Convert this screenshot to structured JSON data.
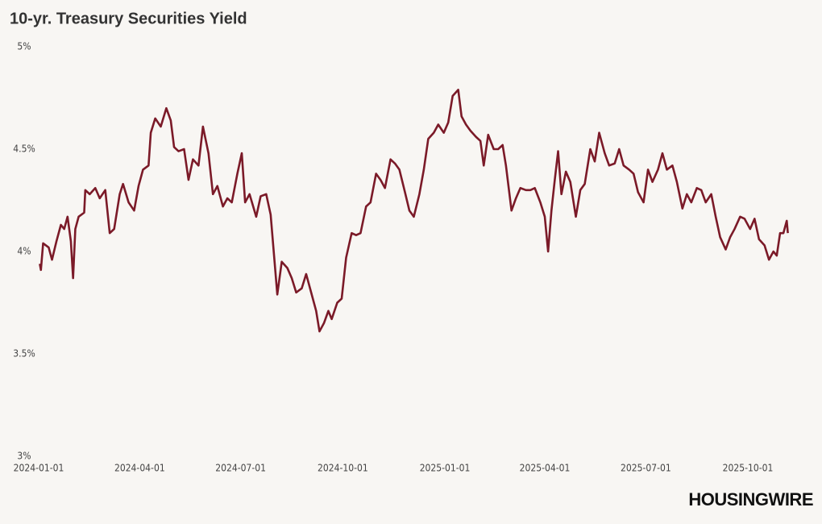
{
  "chart_data": {
    "type": "line",
    "title": "10-yr. Treasury Securities Yield",
    "logo": "HOUSINGWIRE",
    "x": [
      "2024-01-02",
      "2024-01-03",
      "2024-01-05",
      "2024-01-10",
      "2024-01-13",
      "2024-01-17",
      "2024-01-21",
      "2024-01-24",
      "2024-01-27",
      "2024-01-30",
      "2024-02-01",
      "2024-02-03",
      "2024-02-06",
      "2024-02-11",
      "2024-02-12",
      "2024-02-16",
      "2024-02-21",
      "2024-02-25",
      "2024-03-01",
      "2024-03-05",
      "2024-03-09",
      "2024-03-14",
      "2024-03-17",
      "2024-03-22",
      "2024-03-27",
      "2024-03-31",
      "2024-04-04",
      "2024-04-09",
      "2024-04-11",
      "2024-04-15",
      "2024-04-20",
      "2024-04-25",
      "2024-04-29",
      "2024-05-02",
      "2024-05-06",
      "2024-05-11",
      "2024-05-15",
      "2024-05-19",
      "2024-05-24",
      "2024-05-28",
      "2024-06-02",
      "2024-06-06",
      "2024-06-10",
      "2024-06-15",
      "2024-06-19",
      "2024-06-23",
      "2024-06-28",
      "2024-07-02",
      "2024-07-05",
      "2024-07-09",
      "2024-07-15",
      "2024-07-19",
      "2024-07-24",
      "2024-07-28",
      "2024-08-03",
      "2024-08-07",
      "2024-08-12",
      "2024-08-16",
      "2024-08-20",
      "2024-08-25",
      "2024-08-29",
      "2024-09-02",
      "2024-09-07",
      "2024-09-10",
      "2024-09-14",
      "2024-09-18",
      "2024-09-21",
      "2024-09-26",
      "2024-09-30",
      "2024-10-04",
      "2024-10-09",
      "2024-10-13",
      "2024-10-17",
      "2024-10-22",
      "2024-10-26",
      "2024-10-31",
      "2024-11-04",
      "2024-11-08",
      "2024-11-13",
      "2024-11-17",
      "2024-11-21",
      "2024-11-26",
      "2024-11-30",
      "2024-12-04",
      "2024-12-09",
      "2024-12-13",
      "2024-12-17",
      "2024-12-22",
      "2024-12-26",
      "2024-12-31",
      "2025-01-04",
      "2025-01-08",
      "2025-01-13",
      "2025-01-16",
      "2025-01-20",
      "2025-01-24",
      "2025-01-29",
      "2025-02-02",
      "2025-02-05",
      "2025-02-09",
      "2025-02-14",
      "2025-02-18",
      "2025-02-22",
      "2025-02-25",
      "2025-03-02",
      "2025-03-06",
      "2025-03-10",
      "2025-03-15",
      "2025-03-19",
      "2025-03-23",
      "2025-03-28",
      "2025-04-01",
      "2025-04-04",
      "2025-04-07",
      "2025-04-10",
      "2025-04-13",
      "2025-04-16",
      "2025-04-20",
      "2025-04-24",
      "2025-04-29",
      "2025-05-03",
      "2025-05-07",
      "2025-05-12",
      "2025-05-16",
      "2025-05-20",
      "2025-05-25",
      "2025-05-29",
      "2025-06-03",
      "2025-06-07",
      "2025-06-11",
      "2025-06-16",
      "2025-06-20",
      "2025-06-24",
      "2025-06-29",
      "2025-07-03",
      "2025-07-07",
      "2025-07-12",
      "2025-07-16",
      "2025-07-20",
      "2025-07-25",
      "2025-07-29",
      "2025-08-03",
      "2025-08-07",
      "2025-08-11",
      "2025-08-16",
      "2025-08-20",
      "2025-08-24",
      "2025-08-29",
      "2025-09-02",
      "2025-09-06",
      "2025-09-11",
      "2025-09-15",
      "2025-09-19",
      "2025-09-24",
      "2025-09-28",
      "2025-10-03",
      "2025-10-07",
      "2025-10-11",
      "2025-10-16",
      "2025-10-20",
      "2025-10-24",
      "2025-10-27",
      "2025-10-30",
      "2025-11-02",
      "2025-11-05",
      "2025-11-06"
    ],
    "series": [
      {
        "name": "10-yr. Treasury Securities Yield",
        "color": "#7b1a28",
        "values": [
          3.94,
          3.91,
          4.04,
          4.02,
          3.96,
          4.05,
          4.13,
          4.11,
          4.17,
          4.05,
          3.87,
          4.11,
          4.17,
          4.19,
          4.3,
          4.28,
          4.31,
          4.26,
          4.3,
          4.09,
          4.11,
          4.28,
          4.33,
          4.24,
          4.2,
          4.32,
          4.4,
          4.42,
          4.58,
          4.65,
          4.61,
          4.7,
          4.64,
          4.51,
          4.49,
          4.5,
          4.35,
          4.45,
          4.42,
          4.61,
          4.48,
          4.28,
          4.32,
          4.22,
          4.26,
          4.24,
          4.38,
          4.48,
          4.24,
          4.28,
          4.17,
          4.27,
          4.28,
          4.18,
          3.79,
          3.95,
          3.92,
          3.87,
          3.8,
          3.82,
          3.89,
          3.81,
          3.71,
          3.61,
          3.65,
          3.71,
          3.67,
          3.75,
          3.77,
          3.97,
          4.09,
          4.08,
          4.09,
          4.22,
          4.24,
          4.38,
          4.35,
          4.31,
          4.45,
          4.43,
          4.4,
          4.29,
          4.2,
          4.17,
          4.28,
          4.4,
          4.55,
          4.58,
          4.62,
          4.58,
          4.63,
          4.76,
          4.79,
          4.66,
          4.62,
          4.59,
          4.56,
          4.54,
          4.42,
          4.57,
          4.5,
          4.5,
          4.52,
          4.42,
          4.2,
          4.26,
          4.31,
          4.3,
          4.3,
          4.31,
          4.24,
          4.17,
          4.0,
          4.2,
          4.35,
          4.49,
          4.28,
          4.39,
          4.34,
          4.17,
          4.3,
          4.33,
          4.5,
          4.44,
          4.58,
          4.48,
          4.42,
          4.43,
          4.5,
          4.42,
          4.4,
          4.38,
          4.29,
          4.24,
          4.4,
          4.34,
          4.4,
          4.48,
          4.4,
          4.42,
          4.34,
          4.21,
          4.28,
          4.24,
          4.31,
          4.3,
          4.24,
          4.28,
          4.17,
          4.07,
          4.01,
          4.07,
          4.11,
          4.17,
          4.16,
          4.11,
          4.16,
          4.06,
          4.03,
          3.96,
          4.0,
          3.98,
          4.09,
          4.09,
          4.15,
          4.09
        ]
      }
    ],
    "xlim": [
      "2024-01-01",
      "2025-11-07"
    ],
    "xticks": [
      "2024-01-01",
      "2024-04-01",
      "2024-07-01",
      "2024-10-01",
      "2025-01-01",
      "2025-04-01",
      "2025-07-01",
      "2025-10-01"
    ],
    "ylim": [
      3,
      5
    ],
    "yticks": [
      {
        "value": 3,
        "label": "3%"
      },
      {
        "value": 3.5,
        "label": "3.5%"
      },
      {
        "value": 4,
        "label": "4%"
      },
      {
        "value": 4.5,
        "label": "4.5%"
      },
      {
        "value": 5,
        "label": "5%"
      }
    ],
    "grid": false
  }
}
